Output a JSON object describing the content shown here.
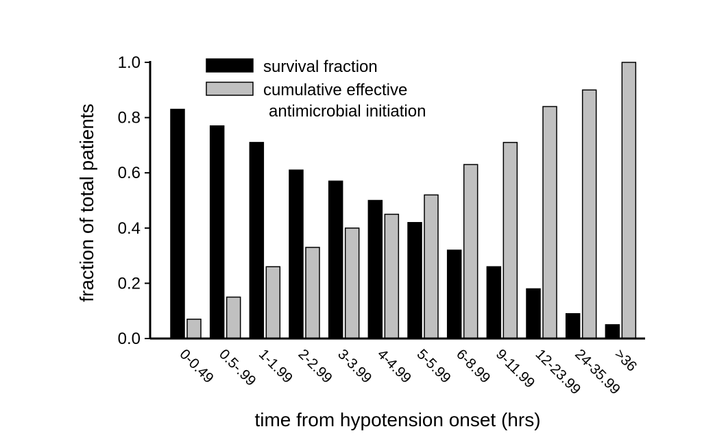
{
  "chart_data": {
    "type": "bar",
    "xlabel": "time from hypotension onset (hrs)",
    "ylabel": "fraction of total patients",
    "ylim": [
      0,
      1.0
    ],
    "yticks": [
      "0.0",
      "0.2",
      "0.4",
      "0.6",
      "0.8",
      "1.0"
    ],
    "categories": [
      "0-0.49",
      "0.5-.99",
      "1-1.99",
      "2-2.99",
      "3-3.99",
      "4-4.99",
      "5-5.99",
      "6-8.99",
      "9-11.99",
      "12-23.99",
      "24-35.99",
      ">36"
    ],
    "series": [
      {
        "name": "survival fraction",
        "color": "#000000",
        "values": [
          0.83,
          0.77,
          0.71,
          0.61,
          0.57,
          0.5,
          0.42,
          0.32,
          0.26,
          0.18,
          0.09,
          0.05
        ]
      },
      {
        "name": "cumulative effective antimicrobial initiation",
        "name_lines": [
          "cumulative effective",
          "antimicrobial initiation"
        ],
        "color": "#c0c0c0",
        "values": [
          0.07,
          0.15,
          0.26,
          0.33,
          0.4,
          0.45,
          0.52,
          0.63,
          0.71,
          0.84,
          0.9,
          1.0
        ]
      }
    ],
    "legend_position": "top-left"
  }
}
